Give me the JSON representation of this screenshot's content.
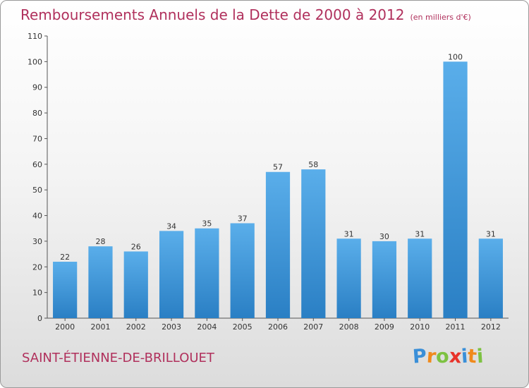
{
  "header": {
    "title": "Remboursements Annuels de la Dette de 2000 à 2012",
    "unit": "(en milliers d'€)"
  },
  "footer": {
    "commune": "SAINT-ÉTIENNE-DE-BRILLOUET",
    "brand_letters": [
      "P",
      "r",
      "o",
      "x",
      "i",
      "t",
      "i"
    ],
    "brand_colors": [
      "#3a8fd8",
      "#f08a1c",
      "#7dc242",
      "#e8332a",
      "#3a8fd8",
      "#f08a1c",
      "#7dc242"
    ]
  },
  "colors": {
    "title": "#b0305c",
    "bar_light": "#5aaeea",
    "bar_dark": "#2a7fc4"
  },
  "chart_data": {
    "type": "bar",
    "categories": [
      "2000",
      "2001",
      "2002",
      "2003",
      "2004",
      "2005",
      "2006",
      "2007",
      "2008",
      "2009",
      "2010",
      "2011",
      "2012"
    ],
    "values": [
      22,
      28,
      26,
      34,
      35,
      37,
      57,
      58,
      31,
      30,
      31,
      100,
      31
    ],
    "value_labels": [
      "22",
      "28",
      "26",
      "34",
      "35",
      "37",
      "57",
      "58",
      "31",
      "30",
      "31",
      "100",
      "31"
    ],
    "ylim": [
      0,
      110
    ],
    "yticks": [
      "0",
      "10",
      "20",
      "30",
      "40",
      "50",
      "60",
      "70",
      "80",
      "90",
      "100",
      "110"
    ],
    "grid": false,
    "legend": "none"
  }
}
